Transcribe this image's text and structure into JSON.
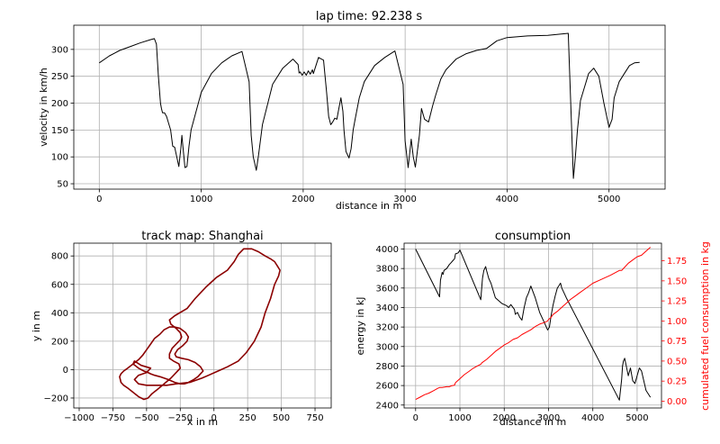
{
  "chart_data": [
    {
      "type": "line",
      "title": "lap time: 92.238 s",
      "xlabel": "distance in m",
      "ylabel": "velocity in km/h",
      "xlim": [
        -250,
        5550
      ],
      "ylim": [
        40,
        345
      ],
      "xticks": [
        0,
        1000,
        2000,
        3000,
        4000,
        5000
      ],
      "yticks": [
        50,
        100,
        150,
        200,
        250,
        300
      ],
      "grid": true,
      "series": [
        {
          "color": "#000000",
          "x": [
            0,
            100,
            200,
            300,
            400,
            500,
            540,
            560,
            580,
            600,
            610,
            620,
            640,
            660,
            700,
            720,
            740,
            760,
            780,
            800,
            810,
            820,
            840,
            860,
            880,
            900,
            1000,
            1100,
            1200,
            1300,
            1400,
            1470,
            1490,
            1510,
            1540,
            1560,
            1600,
            1700,
            1800,
            1900,
            1950,
            1960,
            1970,
            1990,
            2010,
            2030,
            2050,
            2070,
            2090,
            2100,
            2150,
            2200,
            2230,
            2250,
            2270,
            2290,
            2310,
            2330,
            2350,
            2370,
            2390,
            2400,
            2420,
            2450,
            2470,
            2490,
            2510,
            2550,
            2600,
            2700,
            2800,
            2900,
            2980,
            3000,
            3030,
            3060,
            3080,
            3100,
            3120,
            3140,
            3160,
            3190,
            3230,
            3270,
            3300,
            3350,
            3400,
            3500,
            3600,
            3700,
            3800,
            3900,
            4000,
            4200,
            4400,
            4600,
            4650,
            4670,
            4690,
            4720,
            4760,
            4800,
            4850,
            4900,
            4950,
            5000,
            5030,
            5050,
            5100,
            5150,
            5200,
            5250,
            5300
          ],
          "y": [
            275,
            288,
            298,
            305,
            312,
            318,
            320,
            310,
            250,
            200,
            190,
            182,
            182,
            175,
            150,
            120,
            118,
            100,
            82,
            115,
            140,
            120,
            80,
            82,
            120,
            150,
            220,
            255,
            275,
            288,
            296,
            240,
            140,
            100,
            75,
            100,
            160,
            235,
            265,
            282,
            272,
            256,
            258,
            252,
            258,
            252,
            260,
            254,
            262,
            255,
            285,
            280,
            220,
            175,
            160,
            165,
            172,
            170,
            190,
            210,
            185,
            150,
            110,
            98,
            115,
            150,
            170,
            210,
            240,
            270,
            285,
            297,
            235,
            130,
            80,
            133,
            100,
            81,
            110,
            140,
            190,
            170,
            165,
            195,
            215,
            245,
            262,
            282,
            292,
            298,
            302,
            316,
            322,
            325,
            326,
            330,
            60,
            100,
            150,
            205,
            230,
            255,
            265,
            250,
            200,
            155,
            170,
            210,
            240,
            255,
            270,
            275,
            276
          ]
        }
      ]
    },
    {
      "type": "line",
      "title": "track map: Shanghai",
      "xlabel": "x in m",
      "ylabel": "y in m",
      "xlim": [
        -1040,
        870
      ],
      "ylim": [
        -270,
        890
      ],
      "xticks": [
        -1000,
        -750,
        -500,
        -250,
        0,
        250,
        500,
        750
      ],
      "yticks": [
        -200,
        0,
        200,
        400,
        600,
        800
      ],
      "grid": true,
      "series": [
        {
          "color": "#8b0000",
          "x": [
            -90,
            -180,
            -280,
            -350,
            -420,
            -500,
            -560,
            -590,
            -560,
            -500,
            -470,
            -540,
            -590,
            -600,
            -560,
            -520,
            -490,
            -470,
            -440,
            -400,
            -340,
            -290,
            -250,
            -220,
            -200,
            -180,
            -150,
            -120,
            -100,
            -80,
            -100,
            -140,
            -190,
            -240,
            -280,
            -290,
            -270,
            -230,
            -200,
            -190,
            -210,
            -250,
            -290,
            -330,
            -370,
            -400,
            -440,
            -470,
            -500,
            -530,
            -560,
            -600,
            -640,
            -670,
            -690,
            -700,
            -695,
            -690,
            -670,
            -640,
            -600,
            -560,
            -520,
            -490,
            -460,
            -420,
            -370,
            -320,
            -280,
            -250,
            -260,
            -300,
            -330,
            -330,
            -310,
            -280,
            -250,
            -240,
            -250,
            -280,
            -320,
            -330,
            -290,
            -200,
            -140,
            -60,
            20,
            100,
            150,
            180,
            220,
            280,
            330,
            380,
            420,
            450,
            470,
            490,
            480,
            450,
            420,
            400,
            380,
            350,
            300,
            240,
            180,
            100,
            30,
            -40,
            -90
          ],
          "y": [
            -60,
            -90,
            -100,
            -110,
            -110,
            -110,
            -100,
            -70,
            -40,
            -20,
            10,
            30,
            60,
            40,
            10,
            -10,
            -20,
            -30,
            -40,
            -50,
            -70,
            -90,
            -100,
            -100,
            -95,
            -85,
            -70,
            -50,
            -30,
            -10,
            20,
            50,
            70,
            80,
            90,
            110,
            140,
            170,
            200,
            230,
            260,
            290,
            300,
            300,
            280,
            250,
            220,
            180,
            140,
            100,
            70,
            40,
            10,
            -10,
            -30,
            -50,
            -70,
            -90,
            -110,
            -130,
            -160,
            -190,
            -210,
            -200,
            -170,
            -140,
            -100,
            -60,
            -20,
            10,
            40,
            60,
            80,
            110,
            150,
            180,
            210,
            230,
            260,
            290,
            320,
            350,
            380,
            430,
            500,
            580,
            650,
            700,
            760,
            810,
            850,
            850,
            830,
            800,
            780,
            760,
            730,
            700,
            660,
            600,
            500,
            450,
            400,
            300,
            200,
            120,
            60,
            20,
            -10,
            -40,
            -60
          ]
        }
      ]
    },
    {
      "type": "line",
      "title": "consumption",
      "xlabel": "distance in m",
      "ylabel": "energy in kJ",
      "ylabel_right": "cumulated fuel consumption in kg",
      "xlim": [
        -260,
        5550
      ],
      "ylim": [
        2370,
        4060
      ],
      "ylim_right": [
        -0.085,
        1.97
      ],
      "xticks": [
        0,
        1000,
        2000,
        3000,
        4000,
        5000
      ],
      "yticks": [
        2400,
        2600,
        2800,
        3000,
        3200,
        3400,
        3600,
        3800,
        4000
      ],
      "yticks_right": [
        0.0,
        0.25,
        0.5,
        0.75,
        1.0,
        1.25,
        1.5,
        1.75
      ],
      "grid": true,
      "series": [
        {
          "axis": "left",
          "color": "#000000",
          "x": [
            0,
            540,
            560,
            600,
            620,
            640,
            700,
            760,
            800,
            840,
            880,
            900,
            960,
            1000,
            1470,
            1510,
            1540,
            1560,
            1580,
            1600,
            1650,
            1700,
            1800,
            1950,
            2050,
            2100,
            2150,
            2230,
            2250,
            2300,
            2350,
            2400,
            2450,
            2500,
            2550,
            2600,
            2700,
            2800,
            2900,
            2980,
            3020,
            3060,
            3100,
            3150,
            3200,
            3230,
            3270,
            3300,
            3350,
            3400,
            4600,
            4650,
            4670,
            4690,
            4720,
            4800,
            4850,
            4900,
            4950,
            5000,
            5050,
            5100,
            5150,
            5200,
            5300
          ],
          "y": [
            4000,
            3510,
            3680,
            3760,
            3740,
            3780,
            3800,
            3840,
            3860,
            3880,
            3900,
            3950,
            3960,
            3990,
            3480,
            3700,
            3780,
            3800,
            3820,
            3780,
            3700,
            3650,
            3500,
            3440,
            3420,
            3400,
            3430,
            3380,
            3330,
            3350,
            3300,
            3270,
            3400,
            3500,
            3550,
            3620,
            3500,
            3350,
            3250,
            3170,
            3200,
            3320,
            3420,
            3520,
            3600,
            3620,
            3650,
            3600,
            3550,
            3500,
            2450,
            2660,
            2800,
            2850,
            2880,
            2700,
            2780,
            2650,
            2620,
            2700,
            2780,
            2750,
            2650,
            2550,
            2480
          ]
        },
        {
          "axis": "right",
          "color": "#ff0000",
          "x": [
            0,
            100,
            200,
            300,
            400,
            500,
            540,
            600,
            700,
            760,
            800,
            880,
            900,
            1000,
            1100,
            1200,
            1300,
            1400,
            1470,
            1500,
            1600,
            1700,
            1800,
            1900,
            2000,
            2100,
            2200,
            2300,
            2400,
            2500,
            2600,
            2700,
            2800,
            2900,
            2980,
            3000,
            3050,
            3100,
            3200,
            3300,
            3400,
            3500,
            3600,
            3700,
            3800,
            3900,
            4000,
            4200,
            4400,
            4600,
            4650,
            4700,
            4800,
            4900,
            5000,
            5100,
            5200,
            5300
          ],
          "y": [
            0.02,
            0.05,
            0.08,
            0.1,
            0.13,
            0.16,
            0.17,
            0.17,
            0.18,
            0.18,
            0.19,
            0.2,
            0.23,
            0.28,
            0.33,
            0.37,
            0.41,
            0.44,
            0.46,
            0.48,
            0.52,
            0.57,
            0.62,
            0.66,
            0.7,
            0.73,
            0.77,
            0.79,
            0.83,
            0.86,
            0.89,
            0.93,
            0.96,
            0.98,
            1.0,
            1.02,
            1.04,
            1.08,
            1.12,
            1.17,
            1.22,
            1.27,
            1.31,
            1.35,
            1.39,
            1.43,
            1.47,
            1.52,
            1.57,
            1.63,
            1.63,
            1.66,
            1.72,
            1.76,
            1.8,
            1.82,
            1.87,
            1.92
          ]
        }
      ]
    }
  ]
}
